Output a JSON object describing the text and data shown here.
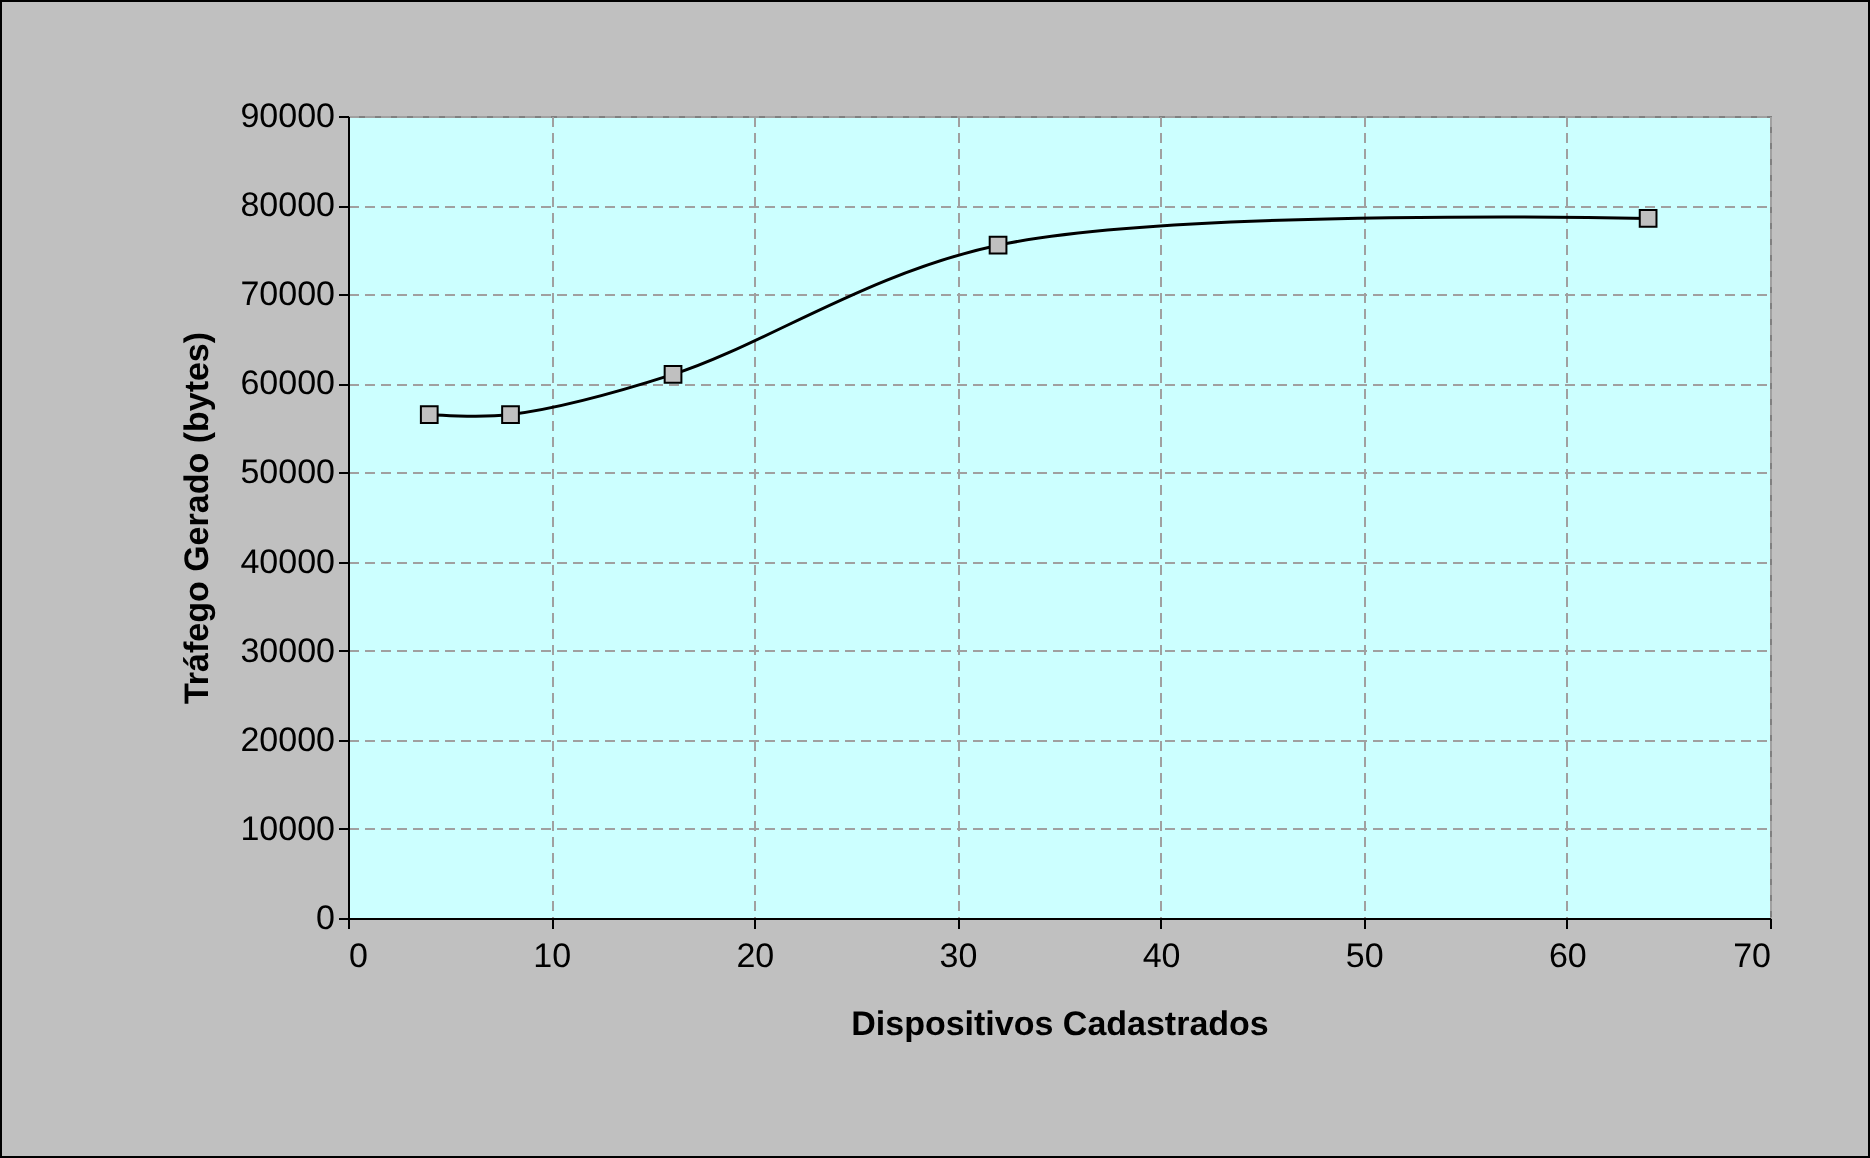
{
  "chart_data": {
    "type": "line",
    "xlabel": "Dispositivos Cadastrados",
    "ylabel": "Tráfego Gerado (bytes)",
    "x": [
      4,
      8,
      16,
      32,
      64
    ],
    "series": [
      {
        "color": "#000000",
        "values": [
          56500,
          56500,
          61000,
          75500,
          78500
        ]
      }
    ],
    "xlim": [
      0,
      70
    ],
    "xticks": [
      0,
      10,
      20,
      30,
      40,
      50,
      60,
      70
    ],
    "ylim": [
      0,
      90000
    ],
    "yticks": [
      0,
      10000,
      20000,
      30000,
      40000,
      50000,
      60000,
      70000,
      80000,
      90000
    ],
    "grid": true,
    "marker": "square",
    "line_style": "solid"
  }
}
